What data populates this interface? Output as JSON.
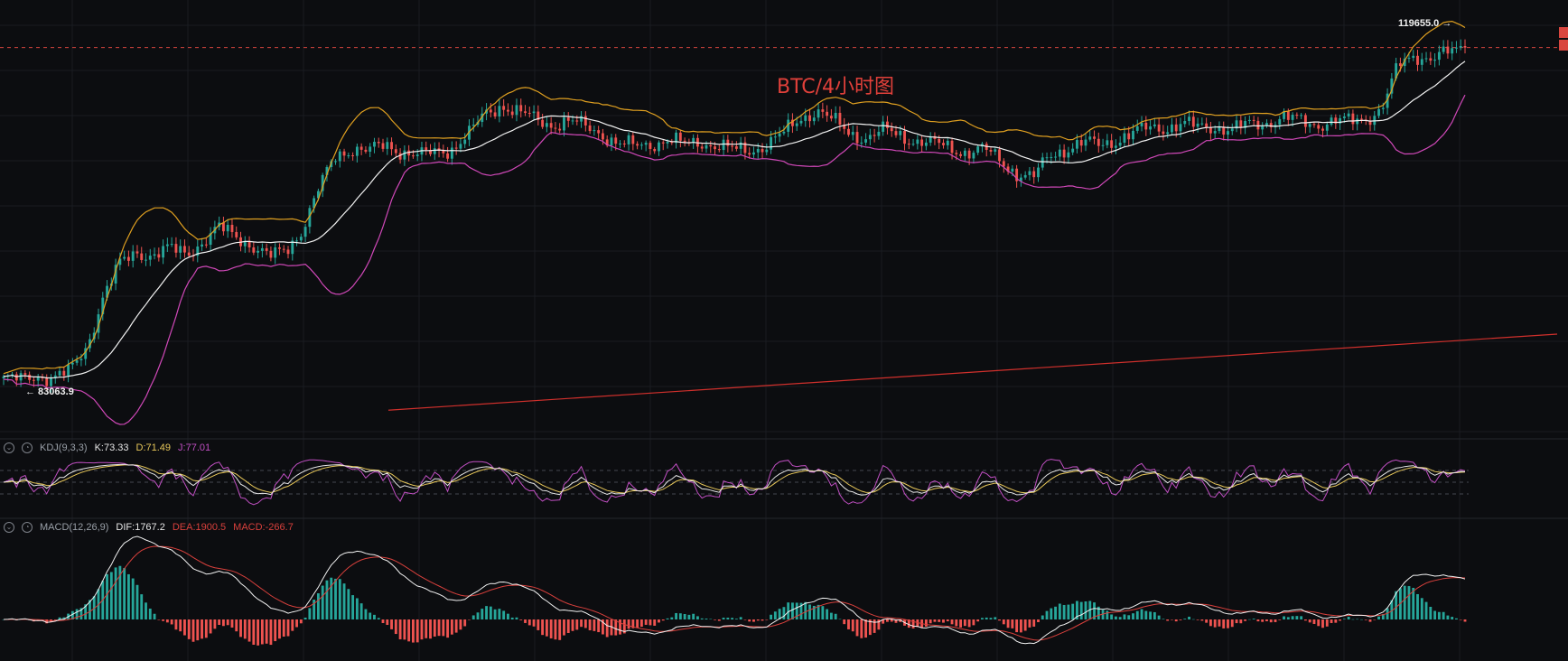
{
  "title": "BTC/4小时图",
  "price_high_label": "119655.0 →",
  "price_low_label": "← 83063.9",
  "kdj": {
    "name": "KDJ(9,3,3)",
    "k": "K:73.33",
    "d": "D:71.49",
    "j": "J:77.01"
  },
  "macd": {
    "name": "MACD(12,26,9)",
    "dif": "DIF:1767.2",
    "dea": "DEA:1900.5",
    "macd": "MACD:-266.7"
  },
  "colors": {
    "background": "#0c0d10",
    "up": "#26a69a",
    "down": "#ef5350",
    "bb_upper": "#e0a020",
    "bb_middle": "#f2f2f2",
    "bb_lower": "#d048b8",
    "trendline": "#d0302c",
    "k_line": "#e6e6e6",
    "d_line": "#e8c85a",
    "j_line": "#c04fc2",
    "dif_line": "#f2f2f2",
    "dea_line": "#d8403c"
  },
  "chart_data": [
    {
      "type": "candlestick",
      "title": "BTC/4小时图",
      "annotations": [
        "119655.0",
        "83063.9"
      ],
      "ylim": [
        80000,
        122000
      ],
      "indicators": [
        "Bollinger Bands"
      ],
      "close_path": [
        84800,
        84600,
        85200,
        84900,
        85500,
        88200,
        93500,
        96800,
        98200,
        97800,
        98400,
        98100,
        99200,
        100600,
        99900,
        98800,
        97500,
        98400,
        100600,
        104800,
        108300,
        109100,
        108700,
        109400,
        108800,
        108200,
        108600,
        109100,
        110500,
        112600,
        113700,
        112800,
        112100,
        111600,
        111900,
        111300,
        110700,
        109500,
        109200,
        109600,
        109900,
        109400,
        109800,
        109300,
        108800,
        108900,
        109500,
        110600,
        112300,
        113100,
        111800,
        110600,
        110200,
        110900,
        110400,
        109900,
        109500,
        109100,
        108700,
        108900,
        107800,
        106500,
        105900,
        108300,
        109100,
        109600,
        109400,
        110000,
        110600,
        111200,
        111300,
        111600,
        111200,
        111400,
        111000,
        111500,
        111800,
        112300,
        111900,
        111600,
        111900,
        111800,
        112200,
        113300,
        117700,
        118900,
        118600,
        119000,
        119655
      ]
    },
    {
      "type": "line",
      "title": "KDJ(9,3,3)",
      "series": [
        {
          "name": "K",
          "last": 73.33
        },
        {
          "name": "D",
          "last": 71.49
        },
        {
          "name": "J",
          "last": 77.01
        }
      ]
    },
    {
      "type": "bar",
      "title": "MACD(12,26,9)",
      "series": [
        {
          "name": "DIF",
          "last": 1767.2
        },
        {
          "name": "DEA",
          "last": 1900.5
        },
        {
          "name": "MACD",
          "last": -266.7
        }
      ]
    }
  ]
}
